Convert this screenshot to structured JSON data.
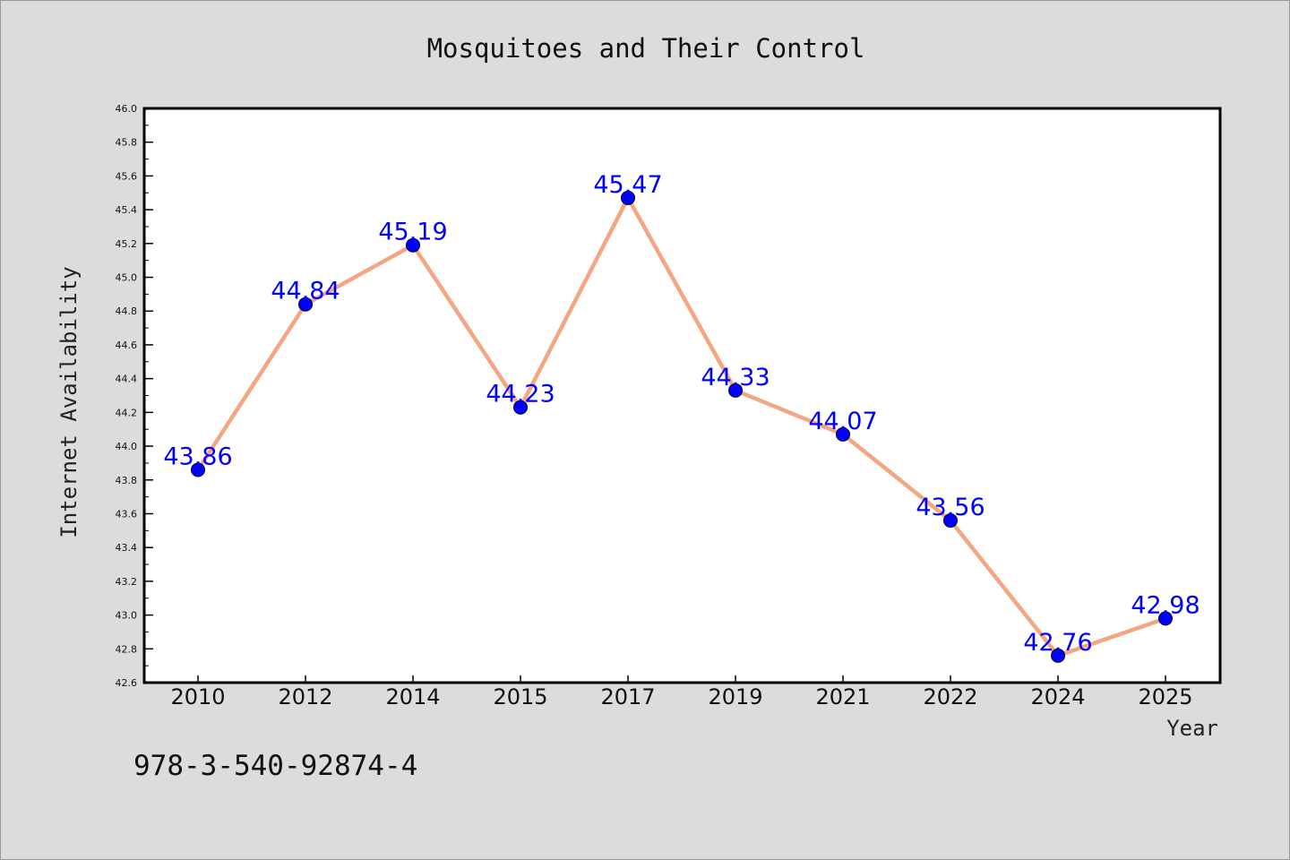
{
  "chart_data": {
    "type": "line",
    "title": "Mosquitoes and Their Control",
    "xlabel": "Year",
    "ylabel": "Internet Availability",
    "categories": [
      "2010",
      "2012",
      "2014",
      "2015",
      "2017",
      "2019",
      "2021",
      "2022",
      "2024",
      "2025"
    ],
    "series": [
      {
        "values": [
          43.86,
          44.84,
          45.19,
          44.23,
          45.47,
          44.33,
          44.07,
          43.56,
          42.76,
          42.98
        ],
        "line_color": "#f4a582",
        "marker_color": "#0000ff"
      }
    ],
    "data_labels": [
      "43.86",
      "44.84",
      "45.19",
      "44.23",
      "45.47",
      "44.33",
      "44.07",
      "43.56",
      "42.76",
      "42.98"
    ],
    "ylim": [
      42.6,
      46.0
    ],
    "yticks": [
      "42.6",
      "42.8",
      "43.0",
      "43.2",
      "43.4",
      "43.6",
      "43.8",
      "44.0",
      "44.2",
      "44.4",
      "44.6",
      "44.8",
      "45.0",
      "45.2",
      "45.4",
      "45.6",
      "45.8",
      "46.0"
    ],
    "grid": false,
    "legend": "none",
    "label_color": "#0000ff"
  },
  "footer": {
    "isbn": "978-3-540-92874-4"
  }
}
